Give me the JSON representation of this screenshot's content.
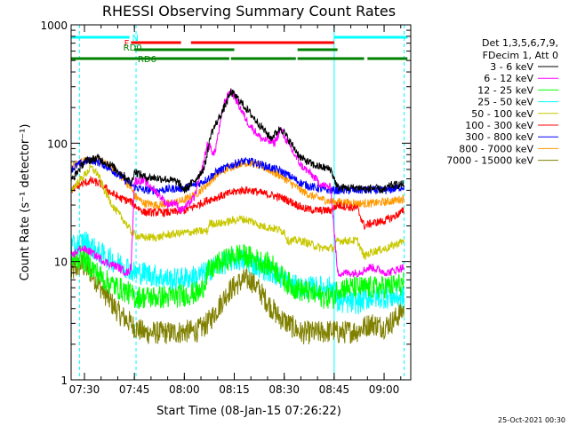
{
  "chart_data": {
    "type": "line",
    "title": "RHESSI Observing Summary Count Rates",
    "xlabel": "Start Time (08-Jan-15 07:26:22)",
    "ylabel": "Count Rate (s⁻¹ detector⁻¹)",
    "ylog": true,
    "xlim_min": [
      0,
      102
    ],
    "ylim": [
      1,
      1000
    ],
    "x_ticks": [
      {
        "min": 4,
        "label": "07:30"
      },
      {
        "min": 19,
        "label": "07:45"
      },
      {
        "min": 34,
        "label": "08:00"
      },
      {
        "min": 49,
        "label": "08:15"
      },
      {
        "min": 64,
        "label": "08:30"
      },
      {
        "min": 79,
        "label": "08:45"
      },
      {
        "min": 94,
        "label": "09:00"
      }
    ],
    "y_ticks": [
      {
        "value": 1,
        "label": "1"
      },
      {
        "value": 10,
        "label": "10"
      },
      {
        "value": 100,
        "label": "100"
      },
      {
        "value": 1000,
        "label": "1000"
      }
    ],
    "legend_header": [
      "Det 1,3,5,6,7,9,",
      "FDecim 1, Att 0"
    ],
    "series": [
      {
        "name": "3 - 6 keV",
        "color": "#000000",
        "points": [
          [
            0,
            48
          ],
          [
            4,
            70
          ],
          [
            8,
            75
          ],
          [
            12,
            65
          ],
          [
            17,
            50
          ],
          [
            18,
            45
          ],
          [
            19,
            58
          ],
          [
            22,
            52
          ],
          [
            28,
            50
          ],
          [
            32,
            47
          ],
          [
            34,
            40
          ],
          [
            37,
            48
          ],
          [
            40,
            62
          ],
          [
            42,
            120
          ],
          [
            46,
            200
          ],
          [
            48,
            270
          ],
          [
            50,
            240
          ],
          [
            53,
            190
          ],
          [
            56,
            150
          ],
          [
            60,
            110
          ],
          [
            63,
            135
          ],
          [
            66,
            100
          ],
          [
            69,
            75
          ],
          [
            73,
            65
          ],
          [
            76,
            62
          ],
          [
            78,
            60
          ],
          [
            80,
            42
          ],
          [
            87,
            42
          ],
          [
            89,
            40
          ],
          [
            90,
            42
          ],
          [
            94,
            40
          ],
          [
            96,
            44
          ],
          [
            100,
            45
          ]
        ]
      },
      {
        "name": "6 - 12 keV",
        "color": "#ff00ff",
        "points": [
          [
            0,
            11
          ],
          [
            3,
            13
          ],
          [
            6,
            12
          ],
          [
            10,
            10
          ],
          [
            14,
            9
          ],
          [
            17,
            8
          ],
          [
            18,
            9
          ],
          [
            19,
            48
          ],
          [
            22,
            48
          ],
          [
            25,
            40
          ],
          [
            27,
            35
          ],
          [
            29,
            30
          ],
          [
            31,
            32
          ],
          [
            33,
            27
          ],
          [
            35,
            30
          ],
          [
            37,
            35
          ],
          [
            39,
            55
          ],
          [
            41,
            100
          ],
          [
            43,
            80
          ],
          [
            46,
            220
          ],
          [
            48,
            280
          ],
          [
            50,
            220
          ],
          [
            53,
            150
          ],
          [
            57,
            110
          ],
          [
            61,
            100
          ],
          [
            63,
            130
          ],
          [
            66,
            90
          ],
          [
            69,
            65
          ],
          [
            72,
            55
          ],
          [
            75,
            45
          ],
          [
            78,
            42
          ],
          [
            80,
            8
          ],
          [
            86,
            8
          ],
          [
            90,
            9
          ],
          [
            95,
            8
          ],
          [
            100,
            9
          ]
        ]
      },
      {
        "name": "12 - 25 keV",
        "color": "#00ff00",
        "points": [
          [
            0,
            10
          ],
          [
            3,
            11
          ],
          [
            6,
            9
          ],
          [
            10,
            7
          ],
          [
            14,
            6
          ],
          [
            17,
            5.5
          ],
          [
            19,
            5
          ],
          [
            22,
            5
          ],
          [
            30,
            5
          ],
          [
            39,
            5.5
          ],
          [
            41,
            8
          ],
          [
            44,
            9.5
          ],
          [
            47,
            10.5
          ],
          [
            50,
            11.5
          ],
          [
            53,
            11
          ],
          [
            57,
            10
          ],
          [
            61,
            9
          ],
          [
            64,
            7
          ],
          [
            67,
            6
          ],
          [
            71,
            5.5
          ],
          [
            76,
            5
          ],
          [
            79,
            5
          ],
          [
            80,
            6
          ],
          [
            88,
            6
          ],
          [
            92,
            6
          ],
          [
            96,
            6.2
          ],
          [
            100,
            6.5
          ]
        ]
      },
      {
        "name": "25 - 50 keV",
        "color": "#00ffff",
        "points": [
          [
            0,
            13
          ],
          [
            4,
            15
          ],
          [
            8,
            12
          ],
          [
            13,
            10
          ],
          [
            17,
            9
          ],
          [
            19,
            8
          ],
          [
            22,
            8
          ],
          [
            30,
            7
          ],
          [
            38,
            7.5
          ],
          [
            40,
            8
          ],
          [
            43,
            9
          ],
          [
            47,
            10
          ],
          [
            50,
            10.5
          ],
          [
            53,
            10
          ],
          [
            57,
            9
          ],
          [
            61,
            8
          ],
          [
            64,
            7
          ],
          [
            68,
            6
          ],
          [
            71,
            6
          ],
          [
            76,
            6
          ],
          [
            79,
            6
          ],
          [
            80,
            4.5
          ],
          [
            86,
            4.5
          ],
          [
            90,
            5
          ],
          [
            96,
            5
          ],
          [
            100,
            5
          ]
        ]
      },
      {
        "name": "50 - 100 keV",
        "color": "#c8c800",
        "points": [
          [
            0,
            40
          ],
          [
            3,
            50
          ],
          [
            6,
            62
          ],
          [
            8,
            55
          ],
          [
            10,
            40
          ],
          [
            13,
            28
          ],
          [
            16,
            22
          ],
          [
            18,
            18
          ],
          [
            19,
            17
          ],
          [
            21,
            16
          ],
          [
            26,
            16
          ],
          [
            30,
            17
          ],
          [
            34,
            17.5
          ],
          [
            38,
            18
          ],
          [
            41,
            18
          ],
          [
            41.5,
            21
          ],
          [
            45,
            21
          ],
          [
            48,
            22
          ],
          [
            51,
            23
          ],
          [
            54,
            22
          ],
          [
            57,
            20
          ],
          [
            61,
            19
          ],
          [
            64,
            18
          ],
          [
            65,
            15
          ],
          [
            69,
            15
          ],
          [
            72,
            14
          ],
          [
            75,
            13
          ],
          [
            79,
            13
          ],
          [
            80,
            15
          ],
          [
            86,
            15
          ],
          [
            88,
            11
          ],
          [
            90,
            12
          ],
          [
            95,
            13
          ],
          [
            100,
            15
          ]
        ]
      },
      {
        "name": "100 - 300 keV",
        "color": "#ff0000",
        "points": [
          [
            0,
            40
          ],
          [
            3,
            45
          ],
          [
            6,
            48
          ],
          [
            9,
            45
          ],
          [
            12,
            38
          ],
          [
            15,
            34
          ],
          [
            18,
            32
          ],
          [
            19,
            30
          ],
          [
            22,
            26
          ],
          [
            26,
            26
          ],
          [
            30,
            26
          ],
          [
            34,
            27
          ],
          [
            38,
            30
          ],
          [
            41,
            33
          ],
          [
            44,
            35
          ],
          [
            48,
            38
          ],
          [
            51,
            40
          ],
          [
            54,
            40
          ],
          [
            57,
            38
          ],
          [
            61,
            36
          ],
          [
            64,
            34
          ],
          [
            67,
            31
          ],
          [
            70,
            28
          ],
          [
            74,
            27
          ],
          [
            78,
            27
          ],
          [
            80,
            30
          ],
          [
            86,
            28
          ],
          [
            88,
            20
          ],
          [
            90,
            21
          ],
          [
            94,
            22
          ],
          [
            97,
            24
          ],
          [
            100,
            27
          ]
        ]
      },
      {
        "name": "300 - 800 keV",
        "color": "#0000ff",
        "points": [
          [
            0,
            60
          ],
          [
            3,
            68
          ],
          [
            6,
            72
          ],
          [
            9,
            68
          ],
          [
            12,
            60
          ],
          [
            15,
            52
          ],
          [
            18,
            45
          ],
          [
            19,
            43
          ],
          [
            22,
            40
          ],
          [
            26,
            40
          ],
          [
            30,
            41
          ],
          [
            34,
            42
          ],
          [
            38,
            45
          ],
          [
            41,
            50
          ],
          [
            44,
            58
          ],
          [
            48,
            65
          ],
          [
            51,
            70
          ],
          [
            54,
            70
          ],
          [
            57,
            66
          ],
          [
            60,
            62
          ],
          [
            63,
            58
          ],
          [
            66,
            52
          ],
          [
            69,
            46
          ],
          [
            72,
            43
          ],
          [
            75,
            41
          ],
          [
            78,
            40
          ],
          [
            80,
            40
          ],
          [
            86,
            40
          ],
          [
            90,
            40
          ],
          [
            95,
            40
          ],
          [
            100,
            43
          ]
        ]
      },
      {
        "name": "800 - 7000 keV",
        "color": "#ff9900",
        "points": [
          [
            0,
            62
          ],
          [
            3,
            70
          ],
          [
            6,
            74
          ],
          [
            9,
            70
          ],
          [
            12,
            62
          ],
          [
            15,
            52
          ],
          [
            18,
            42
          ],
          [
            19,
            36
          ],
          [
            22,
            31
          ],
          [
            26,
            30
          ],
          [
            30,
            31
          ],
          [
            34,
            33
          ],
          [
            38,
            38
          ],
          [
            41,
            45
          ],
          [
            44,
            55
          ],
          [
            48,
            63
          ],
          [
            51,
            68
          ],
          [
            54,
            68
          ],
          [
            57,
            64
          ],
          [
            60,
            58
          ],
          [
            63,
            53
          ],
          [
            66,
            46
          ],
          [
            69,
            40
          ],
          [
            72,
            36
          ],
          [
            75,
            34
          ],
          [
            78,
            32
          ],
          [
            80,
            32
          ],
          [
            86,
            31
          ],
          [
            90,
            31
          ],
          [
            95,
            32
          ],
          [
            100,
            34
          ]
        ]
      },
      {
        "name": "7000 - 15000 keV",
        "color": "#808000",
        "points": [
          [
            0,
            8
          ],
          [
            3,
            9.5
          ],
          [
            6,
            8
          ],
          [
            9,
            6
          ],
          [
            12,
            4.5
          ],
          [
            15,
            3.5
          ],
          [
            18,
            3
          ],
          [
            19,
            2.8
          ],
          [
            22,
            2.5
          ],
          [
            30,
            2.5
          ],
          [
            38,
            2.6
          ],
          [
            41,
            3
          ],
          [
            44,
            4
          ],
          [
            47,
            5.5
          ],
          [
            50,
            6.5
          ],
          [
            52,
            7
          ],
          [
            54,
            7
          ],
          [
            56,
            6
          ],
          [
            59,
            4.5
          ],
          [
            62,
            3.5
          ],
          [
            65,
            3
          ],
          [
            69,
            2.5
          ],
          [
            74,
            2.5
          ],
          [
            79,
            2.6
          ],
          [
            80,
            2.5
          ],
          [
            86,
            2.6
          ],
          [
            90,
            3
          ],
          [
            94,
            2.8
          ],
          [
            97,
            3.2
          ],
          [
            100,
            4
          ]
        ]
      }
    ],
    "bars": [
      {
        "label": "N",
        "color": "#00ffff",
        "level": 0,
        "segments": [
          [
            0,
            17.5
          ],
          [
            79,
            101
          ]
        ]
      },
      {
        "label": "F",
        "color": "#ff0000",
        "level": 1,
        "segments": [
          [
            18,
            33
          ],
          [
            36,
            79
          ]
        ]
      },
      {
        "label": "RD0",
        "color": "#008000",
        "level": 2,
        "segments": [
          [
            19,
            49
          ],
          [
            68,
            80
          ]
        ]
      },
      {
        "label": "RD6",
        "color": "#008000",
        "level": 3,
        "segments": [
          [
            0,
            47.5
          ],
          [
            48,
            67.5
          ],
          [
            68,
            88
          ],
          [
            89,
            101
          ]
        ]
      }
    ],
    "eclipse_lines_min": [
      2.5,
      19.5,
      79,
      100
    ],
    "footer_timestamp": "25-Oct-2021 00:30"
  }
}
